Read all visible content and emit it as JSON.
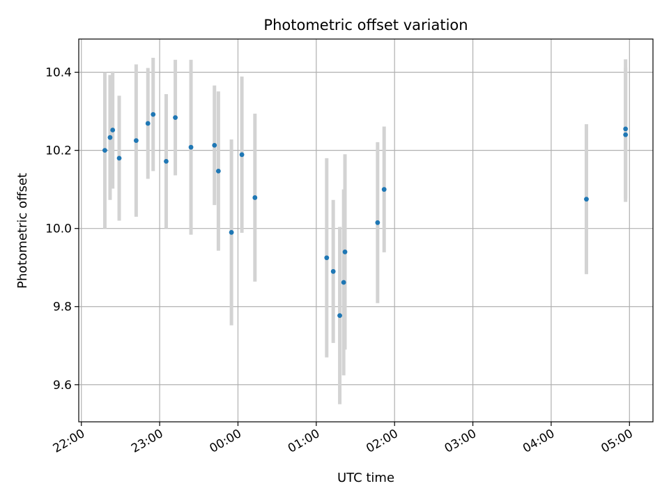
{
  "chart_data": {
    "type": "scatter",
    "title": "Photometric offset variation",
    "xlabel": "UTC time",
    "ylabel": "Photometric offset",
    "x_ticks": [
      "22:00",
      "23:00",
      "00:00",
      "01:00",
      "02:00",
      "03:00",
      "04:00",
      "05:00"
    ],
    "y_ticks": [
      "9.6",
      "9.8",
      "10.0",
      "10.2",
      "10.4"
    ],
    "xlim": [
      "21:58",
      "05:18"
    ],
    "ylim": [
      9.505,
      10.485
    ],
    "grid": true,
    "colors": {
      "point": "#1f77b4",
      "errorbar": "#d3d3d3",
      "grid": "#b0b0b0"
    },
    "points": [
      {
        "x": "22:18",
        "y": 10.2,
        "yerr": 0.2
      },
      {
        "x": "22:22",
        "y": 10.233,
        "yerr": 0.16
      },
      {
        "x": "22:24",
        "y": 10.252,
        "yerr": 0.15
      },
      {
        "x": "22:29",
        "y": 10.18,
        "yerr": 0.16
      },
      {
        "x": "22:42",
        "y": 10.225,
        "yerr": 0.195
      },
      {
        "x": "22:51",
        "y": 10.269,
        "yerr": 0.142
      },
      {
        "x": "22:55",
        "y": 10.292,
        "yerr": 0.145
      },
      {
        "x": "23:05",
        "y": 10.172,
        "yerr": 0.172
      },
      {
        "x": "23:12",
        "y": 10.284,
        "yerr": 0.148
      },
      {
        "x": "23:24",
        "y": 10.208,
        "yerr": 0.224
      },
      {
        "x": "23:42",
        "y": 10.213,
        "yerr": 0.153
      },
      {
        "x": "23:45",
        "y": 10.147,
        "yerr": 0.204
      },
      {
        "x": "23:55",
        "y": 9.99,
        "yerr": 0.238
      },
      {
        "x": "00:03",
        "y": 10.189,
        "yerr": 0.2
      },
      {
        "x": "00:13",
        "y": 10.079,
        "yerr": 0.215
      },
      {
        "x": "01:08",
        "y": 9.925,
        "yerr": 0.255
      },
      {
        "x": "01:13",
        "y": 9.89,
        "yerr": 0.183
      },
      {
        "x": "01:18",
        "y": 9.777,
        "yerr": 0.227
      },
      {
        "x": "01:21",
        "y": 9.862,
        "yerr": 0.238
      },
      {
        "x": "01:22",
        "y": 9.94,
        "yerr": 0.25
      },
      {
        "x": "01:47",
        "y": 10.015,
        "yerr": 0.206
      },
      {
        "x": "01:52",
        "y": 10.1,
        "yerr": 0.161
      },
      {
        "x": "04:27",
        "y": 10.075,
        "yerr": 0.192
      },
      {
        "x": "04:57",
        "y": 10.255,
        "yerr": 0.178
      },
      {
        "x": "04:57",
        "y": 10.24,
        "yerr": 0.172
      }
    ]
  }
}
